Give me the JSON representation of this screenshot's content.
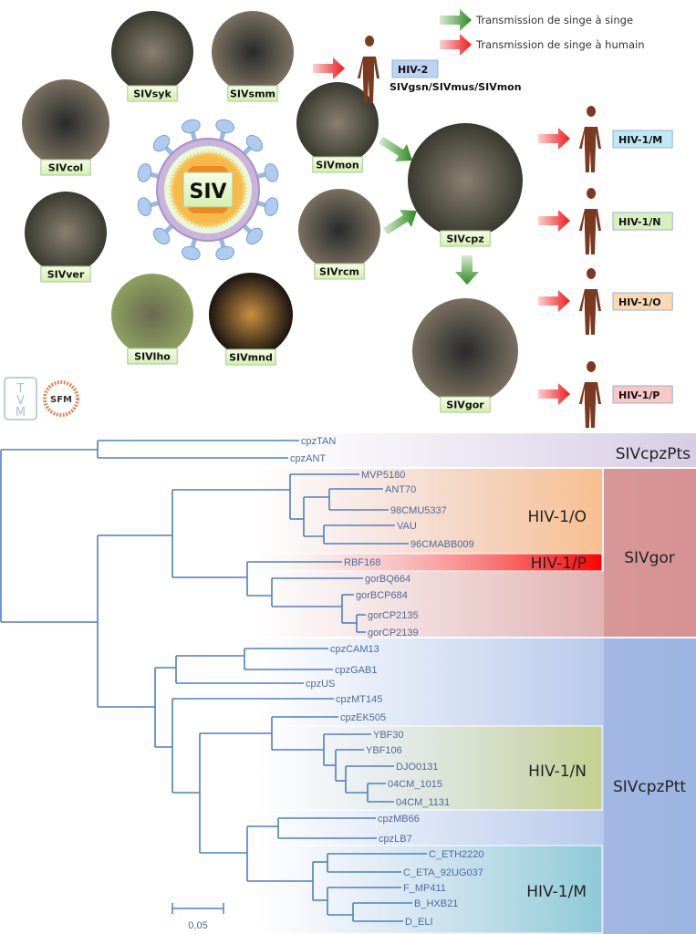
{
  "legend": {
    "ape_to_ape": "Transmission de singe à singe",
    "ape_to_human": "Transmission de singe à humain",
    "green_color": "#3f8f2e",
    "red_color": "#f02020"
  },
  "virus_label": "SIV",
  "source_label": "SIVgsn/SIVmus/SIVmon",
  "primates": [
    {
      "label": "SIVsyk"
    },
    {
      "label": "SIVsmm"
    },
    {
      "label": "SIVcol"
    },
    {
      "label": "SIVver"
    },
    {
      "label": "SIVmon"
    },
    {
      "label": "SIVrcm"
    },
    {
      "label": "SIVlho"
    },
    {
      "label": "SIVmnd"
    },
    {
      "label": "SIVcpz"
    },
    {
      "label": "SIVgor"
    }
  ],
  "human_viruses": [
    {
      "label": "HIV-2",
      "color": "#bcd3f2"
    },
    {
      "label": "HIV-1/M",
      "color": "#bfe8f5"
    },
    {
      "label": "HIV-1/N",
      "color": "#d8f0c0"
    },
    {
      "label": "HIV-1/O",
      "color": "#fcd9b5"
    },
    {
      "label": "HIV-1/P",
      "color": "#f8c8c8"
    }
  ],
  "logos": {
    "tvm": "TVM",
    "sfm": "SFM"
  },
  "tree": {
    "tips": [
      "cpzTAN",
      "cpzANT",
      "MVP5180",
      "ANT70",
      "98CMU5337",
      "VAU",
      "96CMABB009",
      "RBF168",
      "gorBQ664",
      "gorBCP684",
      "gorCP2135",
      "gorCP2139",
      "cpzCAM13",
      "cpzGAB1",
      "cpzUS",
      "cpzMT145",
      "cpzEK505",
      "YBF30",
      "YBF106",
      "DJO0131",
      "04CM_1015",
      "04CM_1131",
      "cpzMB66",
      "cpzLB7",
      "C_ETH2220",
      "C_ETA_92UG037",
      "F_MP411",
      "B_HXB21",
      "D_ELI"
    ],
    "groups": {
      "sivcpzpts": {
        "label": "SIVcpzPts",
        "color": "#d7cde4"
      },
      "sivgor": {
        "label": "SIVgor",
        "color": "#d48b8b"
      },
      "sivcpzptt": {
        "label": "SIVcpzPtt",
        "color": "#9db4e2"
      },
      "hiv1o": {
        "label": "HIV-1/O",
        "color": "#f7c08e"
      },
      "hiv1p": {
        "label": "HIV-1/P",
        "color": "#ff0000"
      },
      "hiv1n": {
        "label": "HIV-1/N",
        "color": "#c5d08e"
      },
      "hiv1m": {
        "label": "HIV-1/M",
        "color": "#8ecad6"
      }
    },
    "scale_bar": "0,05",
    "branch_color": "#4f7fbf"
  }
}
